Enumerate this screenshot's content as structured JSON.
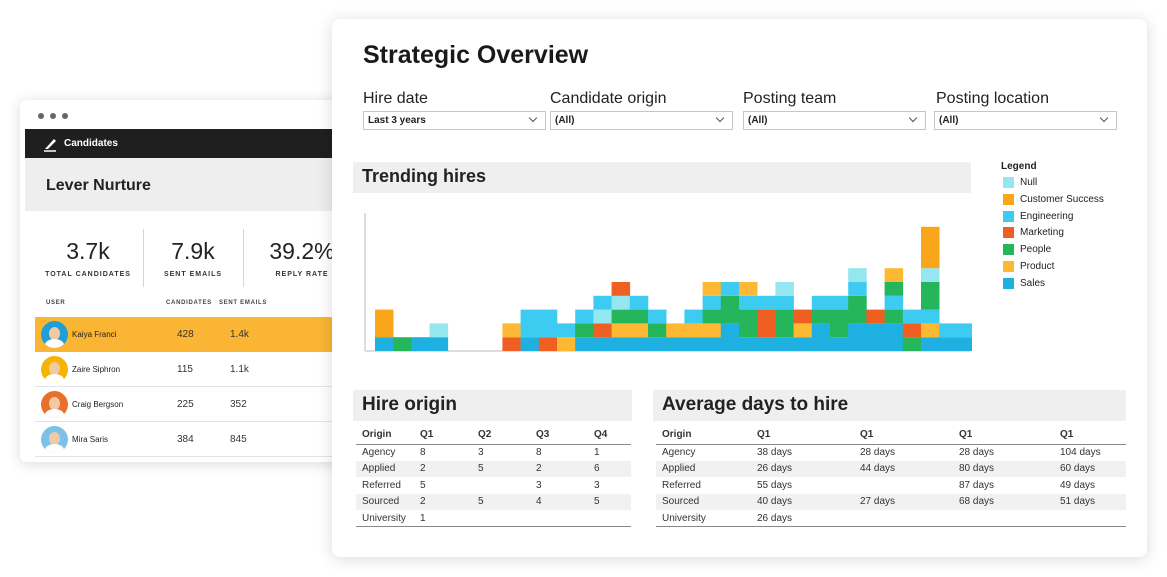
{
  "candidates_card": {
    "topbar_label": "Candidates",
    "title": "Lever Nurture",
    "stats": [
      {
        "value": "3.7k",
        "label": "TOTAL CANDIDATES"
      },
      {
        "value": "7.9k",
        "label": "SENT EMAILS"
      },
      {
        "value": "39.2%",
        "label": "REPLY RATE"
      }
    ],
    "columns": [
      "USER",
      "CANDIDATES",
      "SENT EMAILS"
    ],
    "rows": [
      {
        "name": "Kaiya Franci",
        "candidates": "428",
        "emails": "1.4k",
        "selected": true,
        "color": "#1f9fd6"
      },
      {
        "name": "Zaire Siphron",
        "candidates": "115",
        "emails": "1.1k",
        "selected": false,
        "color": "#f4b400"
      },
      {
        "name": "Craig Bergson",
        "candidates": "225",
        "emails": "352",
        "selected": false,
        "color": "#e8702a"
      },
      {
        "name": "Mira Saris",
        "candidates": "384",
        "emails": "845",
        "selected": false,
        "color": "#7cc2e8"
      }
    ]
  },
  "overview": {
    "title": "Strategic Overview",
    "filters": [
      {
        "label": "Hire date",
        "value": "Last 3 years"
      },
      {
        "label": "Candidate origin",
        "value": "(All)"
      },
      {
        "label": "Posting team",
        "value": "(All)"
      },
      {
        "label": "Posting location",
        "value": "(All)"
      }
    ],
    "trending_title": "Trending hires",
    "legend_title": "Legend",
    "hire_origin": {
      "title": "Hire origin",
      "headers": [
        "Origin",
        "Q1",
        "Q2",
        "Q3",
        "Q4"
      ],
      "rows": [
        [
          "Agency",
          "8",
          "3",
          "8",
          "1"
        ],
        [
          "Applied",
          "2",
          "5",
          "2",
          "6"
        ],
        [
          "Referred",
          "5",
          "",
          "3",
          "3"
        ],
        [
          "Sourced",
          "2",
          "5",
          "4",
          "5"
        ],
        [
          "University",
          "1",
          "",
          "",
          ""
        ]
      ]
    },
    "avg_days": {
      "title": "Average days to hire",
      "headers": [
        "Origin",
        "Q1",
        "Q1",
        "Q1",
        "Q1"
      ],
      "rows": [
        [
          "Agency",
          "38 days",
          "28 days",
          "28 days",
          "104 days"
        ],
        [
          "Applied",
          "26 days",
          "44 days",
          "80 days",
          "60 days"
        ],
        [
          "Referred",
          "55 days",
          "",
          "87 days",
          "49 days"
        ],
        [
          "Sourced",
          "40 days",
          "27 days",
          "68 days",
          "51 days"
        ],
        [
          "University",
          "26 days",
          "",
          "",
          ""
        ]
      ]
    }
  },
  "chart_data": {
    "type": "bar",
    "stacked": true,
    "title": "Trending hires",
    "legend_position": "right",
    "series": [
      {
        "name": "Null",
        "color": "#94e6ef"
      },
      {
        "name": "Customer Success",
        "color": "#f9a61b"
      },
      {
        "name": "Engineering",
        "color": "#3ecbf2"
      },
      {
        "name": "Marketing",
        "color": "#ef5f22"
      },
      {
        "name": "People",
        "color": "#25b55b"
      },
      {
        "name": "Product",
        "color": "#fdb933"
      },
      {
        "name": "Sales",
        "color": "#1fb0e2"
      }
    ],
    "stacks": [
      [
        [
          "Sales",
          1
        ],
        [
          "Customer Success",
          2
        ]
      ],
      [
        [
          "People",
          1
        ]
      ],
      [
        [
          "Sales",
          1
        ]
      ],
      [
        [
          "Sales",
          1
        ],
        [
          "Null",
          1
        ]
      ],
      [],
      [],
      [],
      [
        [
          "Marketing",
          1
        ],
        [
          "Product",
          1
        ]
      ],
      [
        [
          "Sales",
          1
        ],
        [
          "Engineering",
          2
        ]
      ],
      [
        [
          "Marketing",
          1
        ],
        [
          "Engineering",
          2
        ]
      ],
      [
        [
          "Product",
          1
        ],
        [
          "Engineering",
          1
        ]
      ],
      [
        [
          "Sales",
          1
        ],
        [
          "People",
          1
        ],
        [
          "Engineering",
          1
        ]
      ],
      [
        [
          "Sales",
          1
        ],
        [
          "Marketing",
          1
        ],
        [
          "Null",
          1
        ],
        [
          "Engineering",
          1
        ]
      ],
      [
        [
          "Sales",
          1
        ],
        [
          "Product",
          1
        ],
        [
          "People",
          1
        ],
        [
          "Null",
          1
        ],
        [
          "Marketing",
          1
        ]
      ],
      [
        [
          "Sales",
          1
        ],
        [
          "Product",
          1
        ],
        [
          "People",
          1
        ],
        [
          "Engineering",
          1
        ]
      ],
      [
        [
          "Sales",
          1
        ],
        [
          "People",
          1
        ],
        [
          "Engineering",
          1
        ]
      ],
      [
        [
          "Sales",
          1
        ],
        [
          "Product",
          1
        ]
      ],
      [
        [
          "Sales",
          1
        ],
        [
          "Product",
          1
        ],
        [
          "Engineering",
          1
        ]
      ],
      [
        [
          "Sales",
          1
        ],
        [
          "Product",
          1
        ],
        [
          "People",
          1
        ],
        [
          "Engineering",
          1
        ],
        [
          "Product",
          1
        ]
      ],
      [
        [
          "Sales",
          2
        ],
        [
          "People",
          2
        ],
        [
          "Engineering",
          1
        ]
      ],
      [
        [
          "Sales",
          1
        ],
        [
          "People",
          2
        ],
        [
          "Engineering",
          1
        ],
        [
          "Product",
          1
        ]
      ],
      [
        [
          "Sales",
          1
        ],
        [
          "Marketing",
          2
        ],
        [
          "Engineering",
          1
        ]
      ],
      [
        [
          "Sales",
          1
        ],
        [
          "People",
          2
        ],
        [
          "Engineering",
          1
        ],
        [
          "Null",
          1
        ]
      ],
      [
        [
          "Sales",
          1
        ],
        [
          "Product",
          1
        ],
        [
          "Marketing",
          1
        ]
      ],
      [
        [
          "Sales",
          2
        ],
        [
          "People",
          1
        ],
        [
          "Engineering",
          1
        ]
      ],
      [
        [
          "Sales",
          1
        ],
        [
          "People",
          2
        ],
        [
          "Engineering",
          1
        ]
      ],
      [
        [
          "Sales",
          2
        ],
        [
          "People",
          2
        ],
        [
          "Engineering",
          1
        ],
        [
          "Null",
          1
        ]
      ],
      [
        [
          "Sales",
          2
        ],
        [
          "Marketing",
          1
        ]
      ],
      [
        [
          "Sales",
          2
        ],
        [
          "People",
          1
        ],
        [
          "Engineering",
          1
        ],
        [
          "People",
          1
        ],
        [
          "Product",
          1
        ]
      ],
      [
        [
          "People",
          1
        ],
        [
          "Marketing",
          1
        ],
        [
          "Engineering",
          1
        ]
      ],
      [
        [
          "Sales",
          1
        ],
        [
          "Product",
          1
        ],
        [
          "Engineering",
          1
        ],
        [
          "People",
          2
        ],
        [
          "Null",
          1
        ],
        [
          "Customer Success",
          3
        ]
      ],
      [
        [
          "Sales",
          1
        ],
        [
          "Engineering",
          1
        ]
      ],
      [
        [
          "Sales",
          1
        ],
        [
          "Engineering",
          1
        ]
      ]
    ]
  }
}
